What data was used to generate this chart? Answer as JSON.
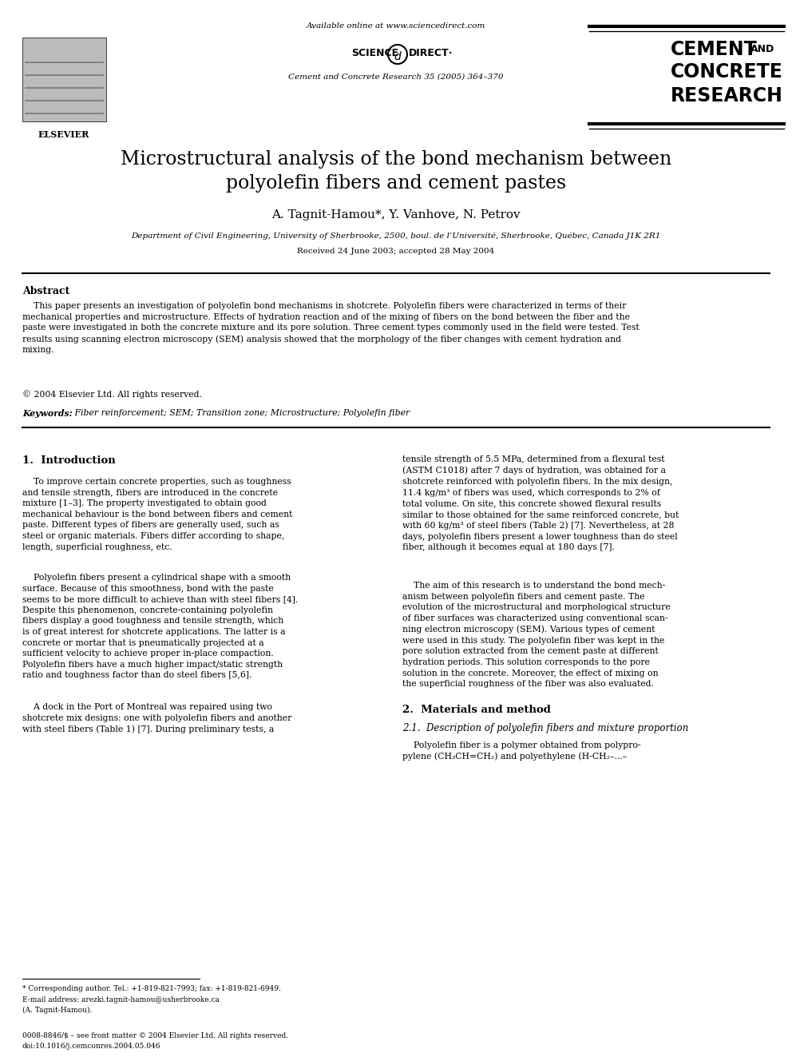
{
  "title_line1": "Microstructural analysis of the bond mechanism between",
  "title_line2": "polyolefin fibers and cement pastes",
  "authors": "A. Tagnit-Hamou*, Y. Vanhove, N. Petrov",
  "affiliation": "Department of Civil Engineering, University of Sherbrooke, 2500, boul. de l’Université, Sherbrooke, Québec, Canada J1K 2R1",
  "received": "Received 24 June 2003; accepted 28 May 2004",
  "header_center_line1": "Available online at www.sciencedirect.com",
  "header_center_line3": "Cement and Concrete Research 35 (2005) 364–370",
  "journal_name_line1": "CEMENT",
  "journal_name_and": "AND",
  "journal_name_line2": "CONCRETE",
  "journal_name_line3": "RESEARCH",
  "elsevier_text": "ELSEVIER",
  "abstract_title": "Abstract",
  "abstract_text": "    This paper presents an investigation of polyolefin bond mechanisms in shotcrete. Polyolefin fibers were characterized in terms of their\nmechanical properties and microstructure. Effects of hydration reaction and of the mixing of fibers on the bond between the fiber and the\npaste were investigated in both the concrete mixture and its pore solution. Three cement types commonly used in the field were tested. Test\nresults using scanning electron microscopy (SEM) analysis showed that the morphology of the fiber changes with cement hydration and\nmixing.",
  "copyright": "© 2004 Elsevier Ltd. All rights reserved.",
  "keywords_label": "Keywords:",
  "keywords_text": " Fiber reinforcement; SEM; Transition zone; Microstructure; Polyolefin fiber",
  "section1_title": "1.  Introduction",
  "section1_col1_para1": "    To improve certain concrete properties, such as toughness\nand tensile strength, fibers are introduced in the concrete\nmixture [1–3]. The property investigated to obtain good\nmechanical behaviour is the bond between fibers and cement\npaste. Different types of fibers are generally used, such as\nsteel or organic materials. Fibers differ according to shape,\nlength, superficial roughness, etc.",
  "section1_col1_para2": "    Polyolefin fibers present a cylindrical shape with a smooth\nsurface. Because of this smoothness, bond with the paste\nseems to be more difficult to achieve than with steel fibers [4].\nDespite this phenomenon, concrete-containing polyolefin\nfibers display a good toughness and tensile strength, which\nis of great interest for shotcrete applications. The latter is a\nconcrete or mortar that is pneumatically projected at a\nsufficient velocity to achieve proper in-place compaction.\nPolyolefin fibers have a much higher impact/static strength\nratio and toughness factor than do steel fibers [5,6].",
  "section1_col1_para3": "    A dock in the Port of Montreal was repaired using two\nshotcrete mix designs: one with polyolefin fibers and another\nwith steel fibers (Table 1) [7]. During preliminary tests, a",
  "section1_col2_para1": "tensile strength of 5.5 MPa, determined from a flexural test\n(ASTM C1018) after 7 days of hydration, was obtained for a\nshotcrete reinforced with polyolefin fibers. In the mix design,\n11.4 kg/m³ of fibers was used, which corresponds to 2% of\ntotal volume. On site, this concrete showed flexural results\nsimilar to those obtained for the same reinforced concrete, but\nwith 60 kg/m³ of steel fibers (Table 2) [7]. Nevertheless, at 28\ndays, polyolefin fibers present a lower toughness than do steel\nfiber, although it becomes equal at 180 days [7].",
  "section1_col2_para2": "    The aim of this research is to understand the bond mech-\nanism between polyolefin fibers and cement paste. The\nevolution of the microstructural and morphological structure\nof fiber surfaces was characterized using conventional scan-\nning electron microscopy (SEM). Various types of cement\nwere used in this study. The polyolefin fiber was kept in the\npore solution extracted from the cement paste at different\nhydration periods. This solution corresponds to the pore\nsolution in the concrete. Moreover, the effect of mixing on\nthe superficial roughness of the fiber was also evaluated.",
  "section2_title": "2.  Materials and method",
  "section2_sub_title": "2.1.  Description of polyolefin fibers and mixture proportion",
  "section2_col2_para1": "    Polyolefin fiber is a polymer obtained from polypro-\npylene (CH₃CH=CH₂) and polyethylene (H-CH₂–...–",
  "footnote_star": "* Corresponding author. Tel.: +1-819-821-7993; fax: +1-819-821-6949.",
  "footnote_email": "E-mail address: arezki.tagnit-hamou@usherbrooke.ca",
  "footnote_author": "(A. Tagnit-Hamou).",
  "footer_line1": "0008-8846/$ – see front matter © 2004 Elsevier Ltd. All rights reserved.",
  "footer_line2": "doi:10.1016/j.cemconres.2004.05.046",
  "bg_color": "#ffffff",
  "text_color": "#000000",
  "link_color": "#0000ff"
}
